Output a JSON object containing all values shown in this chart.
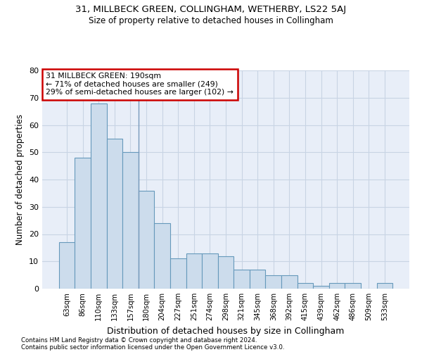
{
  "title1": "31, MILLBECK GREEN, COLLINGHAM, WETHERBY, LS22 5AJ",
  "title2": "Size of property relative to detached houses in Collingham",
  "xlabel": "Distribution of detached houses by size in Collingham",
  "ylabel": "Number of detached properties",
  "categories": [
    "63sqm",
    "86sqm",
    "110sqm",
    "133sqm",
    "157sqm",
    "180sqm",
    "204sqm",
    "227sqm",
    "251sqm",
    "274sqm",
    "298sqm",
    "321sqm",
    "345sqm",
    "368sqm",
    "392sqm",
    "415sqm",
    "439sqm",
    "462sqm",
    "486sqm",
    "509sqm",
    "533sqm"
  ],
  "values": [
    17,
    48,
    68,
    55,
    50,
    36,
    24,
    11,
    13,
    13,
    12,
    7,
    7,
    5,
    5,
    2,
    1,
    2,
    2,
    0,
    2
  ],
  "bar_color": "#ccdcec",
  "bar_edge_color": "#6699bb",
  "annotation_line1": "31 MILLBECK GREEN: 190sqm",
  "annotation_line2": "← 71% of detached houses are smaller (249)",
  "annotation_line3": "29% of semi-detached houses are larger (102) →",
  "annotation_box_color": "#ffffff",
  "annotation_box_edge_color": "#cc0000",
  "footer1": "Contains HM Land Registry data © Crown copyright and database right 2024.",
  "footer2": "Contains public sector information licensed under the Open Government Licence v3.0.",
  "ylim": [
    0,
    80
  ],
  "yticks": [
    0,
    10,
    20,
    30,
    40,
    50,
    60,
    70,
    80
  ],
  "grid_color": "#c8d4e4",
  "bg_color": "#e8eef8"
}
